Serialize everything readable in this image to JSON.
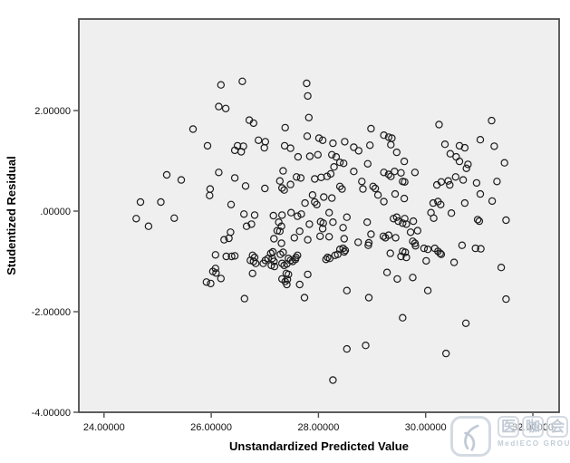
{
  "chart_data": {
    "type": "scatter",
    "title": "",
    "xlabel": "Unstandardized Predicted Value",
    "ylabel": "Studentized Residual",
    "xlim": [
      23.53,
      32.49
    ],
    "ylim": [
      -4.0,
      3.82
    ],
    "grid": false,
    "legend": null,
    "marker": "open-circle",
    "plot_bg": "#efefef",
    "frame_color": "#4d4d4d",
    "marker_color": "#1c1c1c",
    "x_ticks": {
      "values": [
        24,
        26,
        28,
        30,
        32
      ],
      "labels": [
        "24.00000",
        "26.00000",
        "28.00000",
        "30.00000",
        "32.00000"
      ]
    },
    "y_ticks": {
      "values": [
        2,
        0,
        -2,
        -4
      ],
      "labels": [
        "2.00000",
        ".00000",
        "-2.00000",
        "-4.00000"
      ]
    },
    "points": [
      [
        26.18,
        2.51
      ],
      [
        26.14,
        2.08
      ],
      [
        26.27,
        2.04
      ],
      [
        25.66,
        1.63
      ],
      [
        25.93,
        1.3
      ],
      [
        25.17,
        0.72
      ],
      [
        25.44,
        0.62
      ],
      [
        26.14,
        0.77
      ],
      [
        26.44,
        0.66
      ],
      [
        25.98,
        0.44
      ],
      [
        25.97,
        0.31
      ],
      [
        24.68,
        0.18
      ],
      [
        25.06,
        0.18
      ],
      [
        26.37,
        0.13
      ],
      [
        26.58,
        2.58
      ],
      [
        27.78,
        2.54
      ],
      [
        27.8,
        2.29
      ],
      [
        26.71,
        1.81
      ],
      [
        26.79,
        1.75
      ],
      [
        27.38,
        1.66
      ],
      [
        27.82,
        1.86
      ],
      [
        27.79,
        1.49
      ],
      [
        28.01,
        1.45
      ],
      [
        28.08,
        1.41
      ],
      [
        26.88,
        1.41
      ],
      [
        27.01,
        1.38
      ],
      [
        26.49,
        1.3
      ],
      [
        26.6,
        1.29
      ],
      [
        26.44,
        1.21
      ],
      [
        26.56,
        1.18
      ],
      [
        26.99,
        1.26
      ],
      [
        27.37,
        1.3
      ],
      [
        27.48,
        1.25
      ],
      [
        27.62,
        1.08
      ],
      [
        27.84,
        1.09
      ],
      [
        27.99,
        1.12
      ],
      [
        28.27,
        1.35
      ],
      [
        28.49,
        1.38
      ],
      [
        28.25,
        1.12
      ],
      [
        28.33,
        1.08
      ],
      [
        28.4,
        0.97
      ],
      [
        28.47,
        0.95
      ],
      [
        28.29,
        0.88
      ],
      [
        28.66,
        1.27
      ],
      [
        28.75,
        1.2
      ],
      [
        28.96,
        1.31
      ],
      [
        28.98,
        1.64
      ],
      [
        29.22,
        1.51
      ],
      [
        29.31,
        1.47
      ],
      [
        29.35,
        1.32
      ],
      [
        28.92,
        0.94
      ],
      [
        28.66,
        0.79
      ],
      [
        28.23,
        0.74
      ],
      [
        27.34,
        0.8
      ],
      [
        27.28,
        0.6
      ],
      [
        27.32,
        0.46
      ],
      [
        27.36,
        0.42
      ],
      [
        27.48,
        0.53
      ],
      [
        26.64,
        0.5
      ],
      [
        27.0,
        0.45
      ],
      [
        27.59,
        0.68
      ],
      [
        27.67,
        0.66
      ],
      [
        27.93,
        0.64
      ],
      [
        28.05,
        0.67
      ],
      [
        28.16,
        0.69
      ],
      [
        28.4,
        0.49
      ],
      [
        28.44,
        0.44
      ],
      [
        28.81,
        0.59
      ],
      [
        28.83,
        0.44
      ],
      [
        29.02,
        0.49
      ],
      [
        29.06,
        0.45
      ],
      [
        29.11,
        0.32
      ],
      [
        29.22,
        0.77
      ],
      [
        29.31,
        0.73
      ],
      [
        29.35,
        0.69
      ],
      [
        27.89,
        0.32
      ],
      [
        27.93,
        0.18
      ],
      [
        28.1,
        0.28
      ],
      [
        27.97,
        0.13
      ],
      [
        28.25,
        0.26
      ],
      [
        27.75,
        0.16
      ],
      [
        29.22,
        0.19
      ],
      [
        30.25,
        1.72
      ],
      [
        31.23,
        1.8
      ],
      [
        30.36,
        1.33
      ],
      [
        30.63,
        1.3
      ],
      [
        30.73,
        1.26
      ],
      [
        31.02,
        1.42
      ],
      [
        31.28,
        1.29
      ],
      [
        30.46,
        1.14
      ],
      [
        30.57,
        1.08
      ],
      [
        29.37,
        1.45
      ],
      [
        29.46,
        1.17
      ],
      [
        29.6,
        0.99
      ],
      [
        29.42,
        0.79
      ],
      [
        29.54,
        0.76
      ],
      [
        29.8,
        0.77
      ],
      [
        31.47,
        0.96
      ],
      [
        30.63,
        0.99
      ],
      [
        30.79,
        0.93
      ],
      [
        30.76,
        0.85
      ],
      [
        30.56,
        0.68
      ],
      [
        30.7,
        0.62
      ],
      [
        30.21,
        0.52
      ],
      [
        30.29,
        0.58
      ],
      [
        30.42,
        0.6
      ],
      [
        30.45,
        0.52
      ],
      [
        30.95,
        0.56
      ],
      [
        31.33,
        0.59
      ],
      [
        29.57,
        0.59
      ],
      [
        29.61,
        0.58
      ],
      [
        29.43,
        0.34
      ],
      [
        29.6,
        0.25
      ],
      [
        30.14,
        0.16
      ],
      [
        30.23,
        0.19
      ],
      [
        30.28,
        0.13
      ],
      [
        30.73,
        0.16
      ],
      [
        31.02,
        0.34
      ],
      [
        31.24,
        0.2
      ],
      [
        24.6,
        -0.15
      ],
      [
        24.83,
        -0.3
      ],
      [
        25.31,
        -0.14
      ],
      [
        26.36,
        -0.42
      ],
      [
        26.24,
        -0.57
      ],
      [
        26.33,
        -0.54
      ],
      [
        26.08,
        -0.87
      ],
      [
        26.28,
        -0.9
      ],
      [
        26.38,
        -0.9
      ],
      [
        26.03,
        -1.2
      ],
      [
        26.08,
        -1.14
      ],
      [
        26.09,
        -1.23
      ],
      [
        26.18,
        -1.34
      ],
      [
        25.91,
        -1.41
      ],
      [
        25.99,
        -1.44
      ],
      [
        26.61,
        -0.06
      ],
      [
        26.81,
        -0.08
      ],
      [
        27.16,
        -0.09
      ],
      [
        27.32,
        -0.08
      ],
      [
        27.49,
        -0.03
      ],
      [
        27.61,
        -0.1
      ],
      [
        27.68,
        -0.06
      ],
      [
        28.2,
        -0.03
      ],
      [
        28.53,
        -0.12
      ],
      [
        26.66,
        -0.3
      ],
      [
        26.75,
        -0.26
      ],
      [
        27.26,
        -0.22
      ],
      [
        27.31,
        -0.3
      ],
      [
        27.83,
        -0.26
      ],
      [
        28.04,
        -0.21
      ],
      [
        28.09,
        -0.24
      ],
      [
        28.27,
        -0.22
      ],
      [
        28.46,
        -0.33
      ],
      [
        28.91,
        -0.22
      ],
      [
        27.23,
        -0.39
      ],
      [
        27.28,
        -0.4
      ],
      [
        27.65,
        -0.4
      ],
      [
        28.08,
        -0.35
      ],
      [
        27.17,
        -0.55
      ],
      [
        27.55,
        -0.53
      ],
      [
        27.8,
        -0.57
      ],
      [
        28.03,
        -0.5
      ],
      [
        28.2,
        -0.51
      ],
      [
        28.48,
        -0.55
      ],
      [
        28.74,
        -0.62
      ],
      [
        28.94,
        -0.63
      ],
      [
        28.98,
        -0.46
      ],
      [
        29.21,
        -0.5
      ],
      [
        29.25,
        -0.53
      ],
      [
        29.31,
        -0.48
      ],
      [
        27.31,
        -0.64
      ],
      [
        28.46,
        -0.74
      ],
      [
        28.5,
        -0.78
      ],
      [
        28.4,
        -0.76
      ],
      [
        28.93,
        -0.68
      ],
      [
        29.34,
        -0.84
      ],
      [
        26.77,
        -0.88
      ],
      [
        26.81,
        -0.92
      ],
      [
        26.73,
        -0.98
      ],
      [
        26.79,
        -1.0
      ],
      [
        26.83,
        -1.04
      ],
      [
        26.97,
        -1.04
      ],
      [
        27.01,
        -0.98
      ],
      [
        27.06,
        -0.94
      ],
      [
        27.11,
        -0.84
      ],
      [
        27.15,
        -0.81
      ],
      [
        27.14,
        -0.94
      ],
      [
        27.17,
        -1.0
      ],
      [
        27.12,
        -1.08
      ],
      [
        27.18,
        -1.1
      ],
      [
        27.29,
        -0.86
      ],
      [
        27.34,
        -0.82
      ],
      [
        27.32,
        -1.04
      ],
      [
        27.36,
        -1.08
      ],
      [
        27.41,
        -1.05
      ],
      [
        27.44,
        -0.94
      ],
      [
        27.48,
        -0.98
      ],
      [
        27.52,
        -1.0
      ],
      [
        27.57,
        -0.96
      ],
      [
        27.61,
        -0.88
      ],
      [
        27.58,
        -0.92
      ],
      [
        28.17,
        -0.92
      ],
      [
        28.21,
        -0.94
      ],
      [
        28.14,
        -0.96
      ],
      [
        28.31,
        -0.88
      ],
      [
        28.36,
        -0.86
      ],
      [
        28.48,
        -0.81
      ],
      [
        26.77,
        -1.24
      ],
      [
        27.32,
        -1.35
      ],
      [
        27.38,
        -1.4
      ],
      [
        27.42,
        -1.36
      ],
      [
        27.41,
        -1.46
      ],
      [
        27.44,
        -1.26
      ],
      [
        27.4,
        -1.24
      ],
      [
        27.65,
        -1.46
      ],
      [
        27.8,
        -1.26
      ],
      [
        28.53,
        -1.58
      ],
      [
        29.28,
        -1.22
      ],
      [
        26.62,
        -1.74
      ],
      [
        27.74,
        -1.72
      ],
      [
        28.94,
        -1.72
      ],
      [
        28.53,
        -2.74
      ],
      [
        28.88,
        -2.67
      ],
      [
        28.27,
        -3.36
      ],
      [
        26.44,
        -0.89
      ],
      [
        29.4,
        -0.15
      ],
      [
        29.46,
        -0.12
      ],
      [
        29.49,
        -0.2
      ],
      [
        29.57,
        -0.24
      ],
      [
        29.61,
        -0.15
      ],
      [
        29.64,
        -0.26
      ],
      [
        29.77,
        -0.2
      ],
      [
        30.1,
        -0.03
      ],
      [
        30.15,
        -0.14
      ],
      [
        30.48,
        -0.04
      ],
      [
        30.97,
        -0.17
      ],
      [
        31.0,
        -0.2
      ],
      [
        31.5,
        -0.18
      ],
      [
        29.44,
        -0.53
      ],
      [
        29.72,
        -0.42
      ],
      [
        29.85,
        -0.39
      ],
      [
        29.76,
        -0.6
      ],
      [
        29.8,
        -0.64
      ],
      [
        29.81,
        -0.69
      ],
      [
        29.97,
        -0.74
      ],
      [
        30.04,
        -0.76
      ],
      [
        29.57,
        -0.8
      ],
      [
        29.62,
        -0.82
      ],
      [
        29.54,
        -0.9
      ],
      [
        29.64,
        -0.92
      ],
      [
        30.17,
        -0.74
      ],
      [
        30.23,
        -0.8
      ],
      [
        30.27,
        -0.84
      ],
      [
        30.29,
        -0.86
      ],
      [
        30.01,
        -0.99
      ],
      [
        30.53,
        -1.02
      ],
      [
        30.68,
        -0.68
      ],
      [
        30.93,
        -0.74
      ],
      [
        31.03,
        -0.75
      ],
      [
        31.41,
        -1.12
      ],
      [
        29.47,
        -1.35
      ],
      [
        29.76,
        -1.32
      ],
      [
        30.04,
        -1.58
      ],
      [
        31.5,
        -1.75
      ],
      [
        29.57,
        -2.12
      ],
      [
        30.75,
        -2.23
      ],
      [
        30.38,
        -2.83
      ]
    ]
  },
  "watermark": {
    "cjk_characters": [
      "医",
      "咖",
      "会"
    ],
    "subtext": "MedIECO GROUP",
    "color": "#c5ced8"
  }
}
